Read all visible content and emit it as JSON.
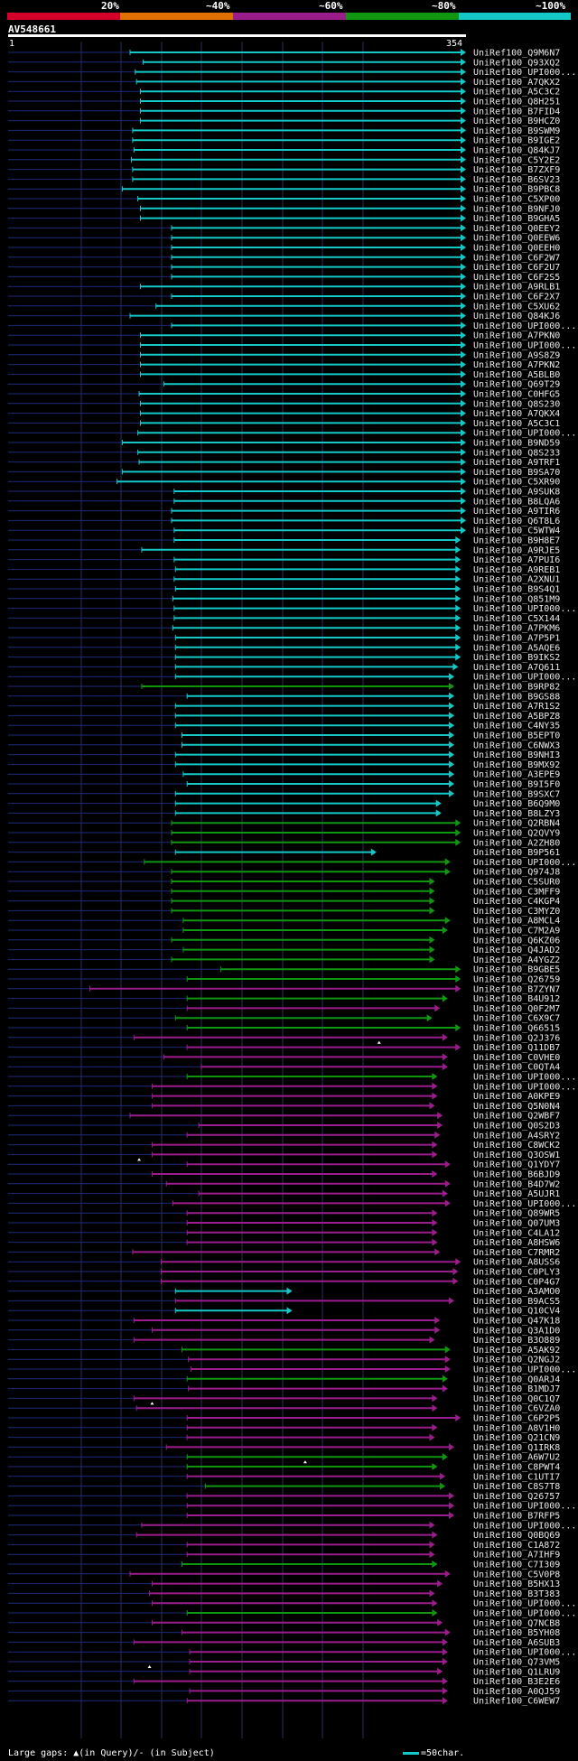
{
  "chart_data": {
    "type": "alignment-overview",
    "query_id": "AV548661",
    "query_start": 1,
    "query_end": 354,
    "query_length": 354,
    "identity_scale": [
      {
        "label": "20%",
        "color": "#d4002a"
      },
      {
        "label": "~40%",
        "color": "#e07000"
      },
      {
        "label": "~60%",
        "color": "#9b1d8c"
      },
      {
        "label": "~80%",
        "color": "#119611"
      },
      {
        "label": "~100%",
        "color": "#14c8c8"
      }
    ],
    "legend": {
      "gap_text": "Large gaps: ▲(in Query)/- (in Subject)",
      "scale_text": "=50char."
    },
    "hits": [
      [
        "UniRef100_Q9M6N7",
        95,
        354,
        "c"
      ],
      [
        "UniRef100_Q93XQ2",
        105,
        354,
        "c"
      ],
      [
        "UniRef100_UPI000...",
        99,
        354,
        "c"
      ],
      [
        "UniRef100_A7QKX2",
        100,
        354,
        "c"
      ],
      [
        "UniRef100_A5C3C2",
        103,
        354,
        "c"
      ],
      [
        "UniRef100_Q8H251",
        103,
        354,
        "c"
      ],
      [
        "UniRef100_B7FID4",
        103,
        354,
        "c"
      ],
      [
        "UniRef100_B9HCZ0",
        103,
        354,
        "c"
      ],
      [
        "UniRef100_B9SWM9",
        97,
        354,
        "c"
      ],
      [
        "UniRef100_B9IGE2",
        97,
        354,
        "c"
      ],
      [
        "UniRef100_Q84KJ7",
        98,
        354,
        "c"
      ],
      [
        "UniRef100_C5Y2E2",
        96,
        354,
        "c"
      ],
      [
        "UniRef100_B7ZXF9",
        97,
        354,
        "c"
      ],
      [
        "UniRef100_B6SV23",
        97,
        354,
        "c"
      ],
      [
        "UniRef100_B9PBC8",
        89,
        354,
        "c"
      ],
      [
        "UniRef100_C5XP00",
        101,
        354,
        "c"
      ],
      [
        "UniRef100_B9NFJ0",
        103,
        354,
        "c"
      ],
      [
        "UniRef100_B9GHA5",
        103,
        354,
        "c"
      ],
      [
        "UniRef100_Q0EEY2",
        127,
        354,
        "c"
      ],
      [
        "UniRef100_Q0EEW6",
        127,
        354,
        "c"
      ],
      [
        "UniRef100_Q0EEH0",
        127,
        354,
        "c"
      ],
      [
        "UniRef100_C6F2W7",
        127,
        354,
        "c"
      ],
      [
        "UniRef100_C6F2U7",
        127,
        354,
        "c"
      ],
      [
        "UniRef100_C6F2S5",
        127,
        354,
        "c"
      ],
      [
        "UniRef100_A9RLB1",
        103,
        354,
        "c"
      ],
      [
        "UniRef100_C6F2X7",
        127,
        354,
        "c"
      ],
      [
        "UniRef100_C5XU62",
        115,
        354,
        "c"
      ],
      [
        "UniRef100_Q84KJ6",
        95,
        354,
        "c"
      ],
      [
        "UniRef100_UPI000...",
        127,
        354,
        "c"
      ],
      [
        "UniRef100_A7PKN0",
        103,
        354,
        "c"
      ],
      [
        "UniRef100_UPI000...",
        103,
        354,
        "c"
      ],
      [
        "UniRef100_A9S8Z9",
        103,
        354,
        "c"
      ],
      [
        "UniRef100_A7PKN2",
        103,
        354,
        "c"
      ],
      [
        "UniRef100_A5BLB0",
        103,
        354,
        "c"
      ],
      [
        "UniRef100_Q69T29",
        121,
        354,
        "c"
      ],
      [
        "UniRef100_C0HFG5",
        102,
        354,
        "c"
      ],
      [
        "UniRef100_Q8S230",
        103,
        354,
        "c"
      ],
      [
        "UniRef100_A7QKX4",
        103,
        354,
        "c"
      ],
      [
        "UniRef100_A5C3C1",
        103,
        354,
        "c"
      ],
      [
        "UniRef100_UPI000...",
        101,
        354,
        "c"
      ],
      [
        "UniRef100_B9ND59",
        89,
        354,
        "c"
      ],
      [
        "UniRef100_Q8S233",
        101,
        354,
        "c"
      ],
      [
        "UniRef100_A9TRF1",
        102,
        354,
        "c"
      ],
      [
        "UniRef100_B9SA70",
        89,
        354,
        "c"
      ],
      [
        "UniRef100_C5XR90",
        85,
        354,
        "c"
      ],
      [
        "UniRef100_A9SUK8",
        129,
        354,
        "c"
      ],
      [
        "UniRef100_B8LQA6",
        129,
        354,
        "c"
      ],
      [
        "UniRef100_A9TIR6",
        127,
        354,
        "c"
      ],
      [
        "UniRef100_Q6T8L6",
        127,
        354,
        "c"
      ],
      [
        "UniRef100_C5WTW4",
        129,
        354,
        "c"
      ],
      [
        "UniRef100_B9H8E7",
        129,
        350,
        "c"
      ],
      [
        "UniRef100_A9RJE5",
        104,
        350,
        "c"
      ],
      [
        "UniRef100_A7PUI6",
        129,
        350,
        "c"
      ],
      [
        "UniRef100_A9REB1",
        130,
        350,
        "c"
      ],
      [
        "UniRef100_A2XNU1",
        129,
        350,
        "c"
      ],
      [
        "UniRef100_B9S4Q1",
        130,
        350,
        "c"
      ],
      [
        "UniRef100_Q851M9",
        128,
        350,
        "c"
      ],
      [
        "UniRef100_UPI000...",
        129,
        350,
        "c"
      ],
      [
        "UniRef100_C5X144",
        129,
        350,
        "c"
      ],
      [
        "UniRef100_A7PKM6",
        128,
        350,
        "c"
      ],
      [
        "UniRef100_A7P5P1",
        130,
        350,
        "c"
      ],
      [
        "UniRef100_A5AQE6",
        130,
        350,
        "c"
      ],
      [
        "UniRef100_B9IKS2",
        130,
        350,
        "c"
      ],
      [
        "UniRef100_A7Q611",
        130,
        348,
        "c"
      ],
      [
        "UniRef100_UPI000...",
        130,
        345,
        "c"
      ],
      [
        "UniRef100_B9RP82",
        104,
        345,
        "g"
      ],
      [
        "UniRef100_B9GS88",
        139,
        345,
        "c"
      ],
      [
        "UniRef100_A7R1S2",
        130,
        345,
        "c"
      ],
      [
        "UniRef100_A5BPZ8",
        130,
        345,
        "c"
      ],
      [
        "UniRef100_C4NY35",
        130,
        345,
        "c"
      ],
      [
        "UniRef100_B5EPT0",
        135,
        345,
        "c"
      ],
      [
        "UniRef100_C6NWX3",
        135,
        345,
        "c"
      ],
      [
        "UniRef100_B9NHI3",
        130,
        345,
        "c"
      ],
      [
        "UniRef100_B9MX92",
        130,
        345,
        "c"
      ],
      [
        "UniRef100_A3EPE9",
        136,
        345,
        "c"
      ],
      [
        "UniRef100_B9I5F0",
        139,
        345,
        "c"
      ],
      [
        "UniRef100_B9SXC7",
        130,
        345,
        "c"
      ],
      [
        "UniRef100_B6Q9M0",
        130,
        335,
        "c"
      ],
      [
        "UniRef100_B8LZY3",
        130,
        335,
        "c"
      ],
      [
        "UniRef100_Q2RBN4",
        127,
        350,
        "g"
      ],
      [
        "UniRef100_Q2QVY9",
        127,
        350,
        "g"
      ],
      [
        "UniRef100_A2ZH80",
        127,
        350,
        "g"
      ],
      [
        "UniRef100_B9P561",
        130,
        285,
        "c"
      ],
      [
        "UniRef100_UPI000...",
        106,
        342,
        "g"
      ],
      [
        "UniRef100_Q974J8",
        127,
        342,
        "g"
      ],
      [
        "UniRef100_C5SUR0",
        127,
        330,
        "g"
      ],
      [
        "UniRef100_C3MFF9",
        127,
        330,
        "g"
      ],
      [
        "UniRef100_C4KGP4",
        127,
        330,
        "g"
      ],
      [
        "UniRef100_C3MYZ0",
        127,
        330,
        "g"
      ],
      [
        "UniRef100_A8MCL4",
        136,
        342,
        "g"
      ],
      [
        "UniRef100_C7M2A9",
        136,
        340,
        "g"
      ],
      [
        "UniRef100_Q6KZ06",
        127,
        330,
        "g"
      ],
      [
        "UniRef100_Q4JAD2",
        136,
        330,
        "g"
      ],
      [
        "UniRef100_A4YGZ2",
        127,
        330,
        "g"
      ],
      [
        "UniRef100_B9GBE5",
        165,
        350,
        "g"
      ],
      [
        "UniRef100_Q26759",
        139,
        350,
        "g"
      ],
      [
        "UniRef100_B7ZYN7",
        64,
        350,
        "m"
      ],
      [
        "UniRef100_B4U912",
        139,
        340,
        "g"
      ],
      [
        "UniRef100_Q0F2M7",
        139,
        334,
        "m"
      ],
      [
        "UniRef100_C6X9C7",
        130,
        328,
        "g"
      ],
      [
        "UniRef100_Q66515",
        139,
        350,
        "g"
      ],
      [
        "UniRef100_Q2J376",
        98,
        340,
        "m"
      ],
      [
        "UniRef100_Q11DB7",
        139,
        350,
        "m"
      ],
      [
        "UniRef100_C0VHE0",
        121,
        340,
        "m"
      ],
      [
        "UniRef100_C0QTA4",
        150,
        340,
        "m"
      ],
      [
        "UniRef100_UPI000...",
        139,
        332,
        "g"
      ],
      [
        "UniRef100_UPI000...",
        112,
        332,
        "m"
      ],
      [
        "UniRef100_A0KPE9",
        112,
        332,
        "m"
      ],
      [
        "UniRef100_Q5N0N4",
        112,
        330,
        "m"
      ],
      [
        "UniRef100_Q2WBF7",
        95,
        336,
        "m"
      ],
      [
        "UniRef100_Q0S2D3",
        148,
        336,
        "m"
      ],
      [
        "UniRef100_A4SRY2",
        139,
        334,
        "m"
      ],
      [
        "UniRef100_C8WCK2",
        112,
        332,
        "m"
      ],
      [
        "UniRef100_Q3OSW1",
        112,
        332,
        "m"
      ],
      [
        "UniRef100_Q1YDY7",
        139,
        342,
        "m"
      ],
      [
        "UniRef100_B6BJD9",
        112,
        332,
        "m"
      ],
      [
        "UniRef100_B4D7W2",
        123,
        342,
        "m"
      ],
      [
        "UniRef100_A5UJR1",
        148,
        340,
        "m"
      ],
      [
        "UniRef100_UPI000...",
        128,
        342,
        "m"
      ],
      [
        "UniRef100_Q89WR5",
        139,
        332,
        "m"
      ],
      [
        "UniRef100_Q07UM3",
        139,
        332,
        "m"
      ],
      [
        "UniRef100_C4LA12",
        139,
        332,
        "m"
      ],
      [
        "UniRef100_A8HSW6",
        139,
        332,
        "m"
      ],
      [
        "UniRef100_C7RMR2",
        97,
        334,
        "m"
      ],
      [
        "UniRef100_A8USS6",
        119,
        350,
        "m"
      ],
      [
        "UniRef100_C0PLY3",
        119,
        348,
        "m"
      ],
      [
        "UniRef100_C0P4G7",
        119,
        348,
        "m"
      ],
      [
        "UniRef100_A3AMO0",
        130,
        220,
        "c"
      ],
      [
        "UniRef100_B9ACS5",
        130,
        345,
        "m"
      ],
      [
        "UniRef100_Q10CV4",
        130,
        220,
        "c"
      ],
      [
        "UniRef100_Q47K18",
        98,
        334,
        "m"
      ],
      [
        "UniRef100_Q3A1D0",
        112,
        334,
        "m"
      ],
      [
        "UniRef100_B3O889",
        98,
        330,
        "m"
      ],
      [
        "UniRef100_A5AK92",
        135,
        342,
        "g"
      ],
      [
        "UniRef100_Q2NGJ2",
        140,
        342,
        "m"
      ],
      [
        "UniRef100_UPI000...",
        142,
        342,
        "m"
      ],
      [
        "UniRef100_Q0ARJ4",
        139,
        340,
        "g"
      ],
      [
        "UniRef100_B1MDJ7",
        140,
        340,
        "m"
      ],
      [
        "UniRef100_Q0C1Q7",
        98,
        332,
        "m"
      ],
      [
        "UniRef100_C6VZA0",
        100,
        332,
        "m"
      ],
      [
        "UniRef100_C6P2P5",
        139,
        350,
        "m"
      ],
      [
        "UniRef100_A8V1H0",
        139,
        332,
        "m"
      ],
      [
        "UniRef100_Q21CN9",
        139,
        330,
        "m"
      ],
      [
        "UniRef100_Q1IRK8",
        123,
        345,
        "m"
      ],
      [
        "UniRef100_A6W7U2",
        139,
        340,
        "g"
      ],
      [
        "UniRef100_C8PWT4",
        139,
        332,
        "g"
      ],
      [
        "UniRef100_C1UTI7",
        139,
        338,
        "m"
      ],
      [
        "UniRef100_C8S7T8",
        153,
        338,
        "g"
      ],
      [
        "UniRef100_Q26757",
        139,
        345,
        "m"
      ],
      [
        "UniRef100_UPI000...",
        139,
        345,
        "m"
      ],
      [
        "UniRef100_B7RFP5",
        139,
        345,
        "m"
      ],
      [
        "UniRef100_UPI000...",
        104,
        330,
        "m"
      ],
      [
        "UniRef100_Q0BQ69",
        100,
        332,
        "m"
      ],
      [
        "UniRef100_C1A872",
        139,
        330,
        "m"
      ],
      [
        "UniRef100_A7IHF9",
        139,
        330,
        "m"
      ],
      [
        "UniRef100_C7I309",
        135,
        332,
        "g"
      ],
      [
        "UniRef100_C5V0P8",
        95,
        342,
        "m"
      ],
      [
        "UniRef100_B5HX13",
        112,
        336,
        "m"
      ],
      [
        "UniRef100_B3T383",
        110,
        330,
        "m"
      ],
      [
        "UniRef100_UPI000...",
        112,
        332,
        "m"
      ],
      [
        "UniRef100_UPI000...",
        139,
        332,
        "g"
      ],
      [
        "UniRef100_Q7NCB8",
        112,
        336,
        "m"
      ],
      [
        "UniRef100_B5YH08",
        135,
        342,
        "m"
      ],
      [
        "UniRef100_A6SUB3",
        98,
        340,
        "m"
      ],
      [
        "UniRef100_UPI000...",
        141,
        340,
        "m"
      ],
      [
        "UniRef100_Q73VM5",
        141,
        340,
        "m"
      ],
      [
        "UniRef100_Q1LRU9",
        141,
        336,
        "m"
      ],
      [
        "UniRef100_B3E2E6",
        98,
        340,
        "m"
      ],
      [
        "UniRef100_A0QJ59",
        141,
        340,
        "m"
      ],
      [
        "UniRef100_C6WEW7",
        139,
        340,
        "m"
      ]
    ],
    "gap_markers": [
      [
        101,
        287
      ],
      [
        113,
        102
      ],
      [
        138,
        112
      ],
      [
        144,
        230
      ],
      [
        165,
        110
      ]
    ]
  }
}
